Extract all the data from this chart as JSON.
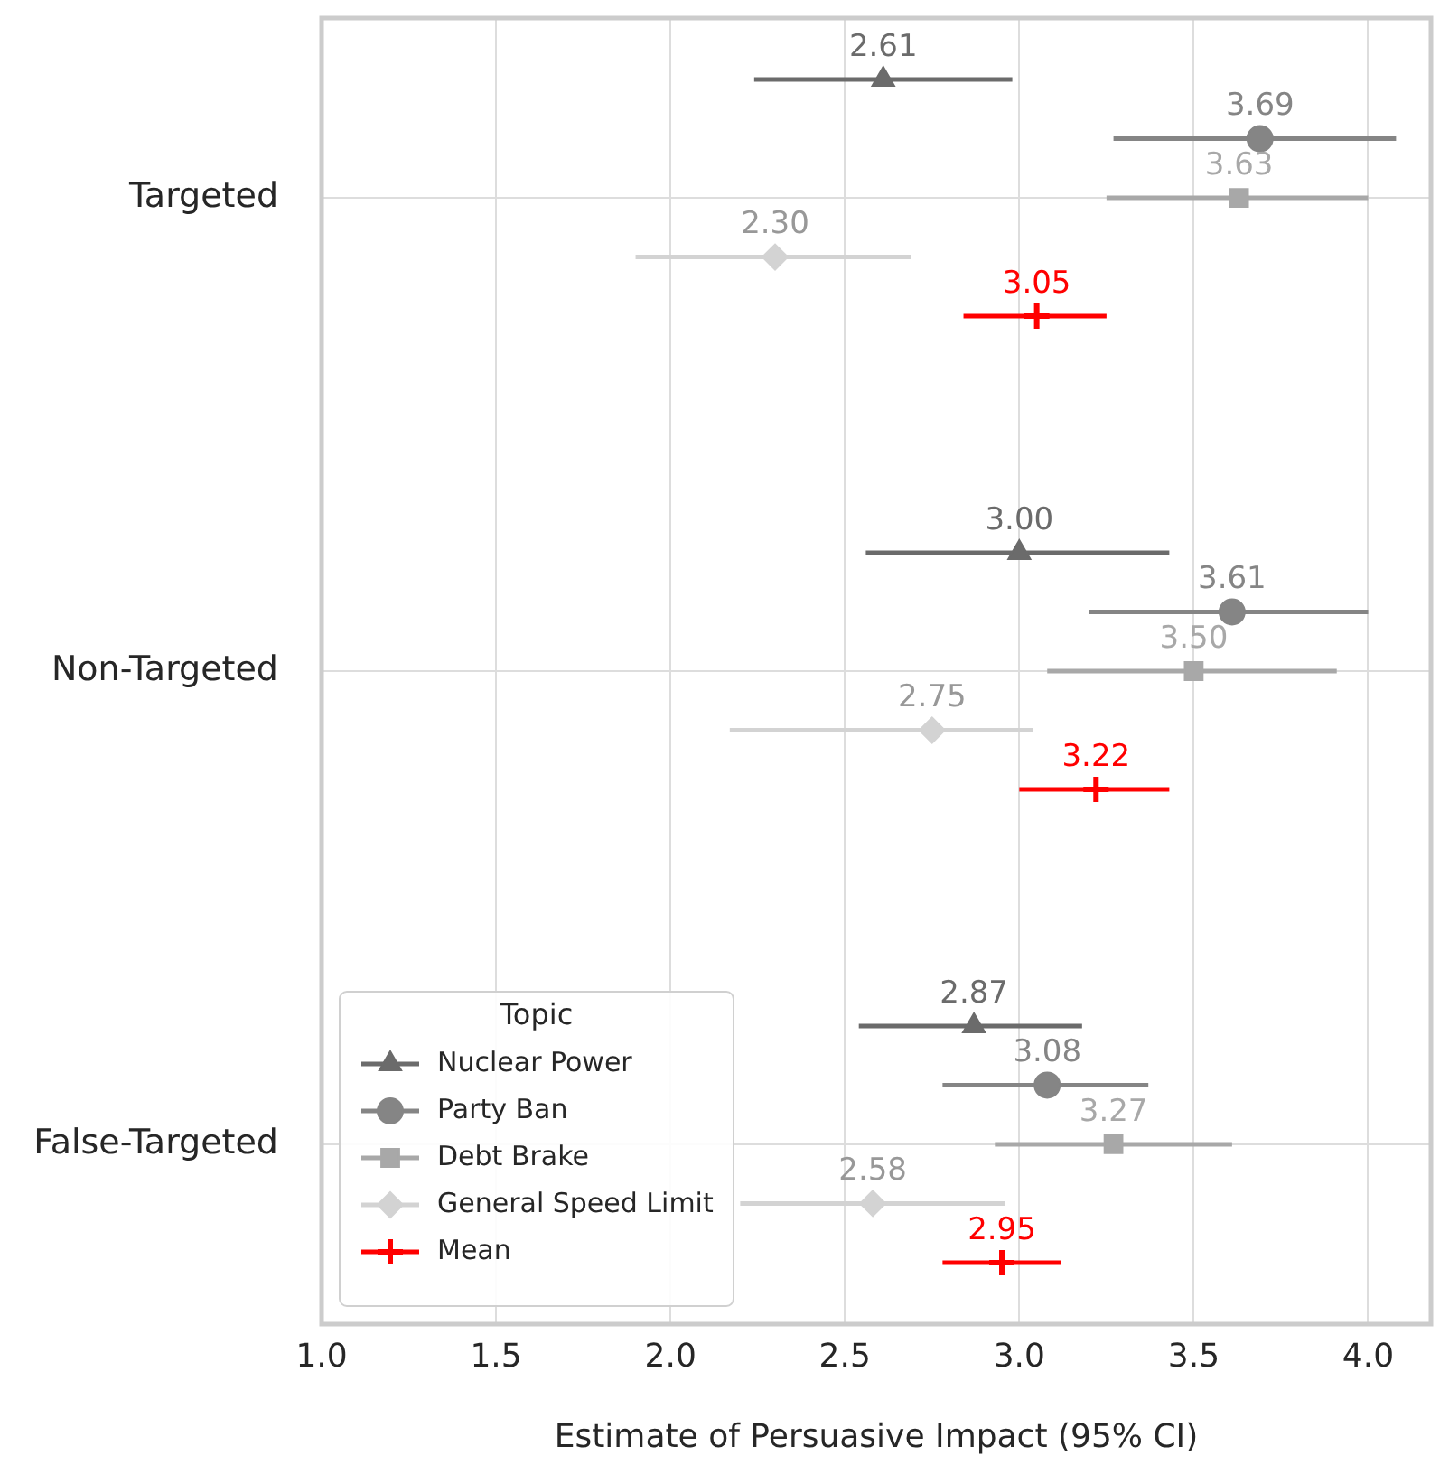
{
  "chart_data": {
    "type": "scatter",
    "orientation": "horizontal",
    "xlabel": "Estimate of Persuasive Impact (95% CI)",
    "legend_title": "Topic",
    "legend": "bottom left",
    "grid": true,
    "categories": [
      "Targeted",
      "Non-Targeted",
      "False-Targeted"
    ],
    "xlim": [
      1.0,
      4.18
    ],
    "xticks": [
      {
        "value": 1,
        "label": "1.0"
      },
      {
        "value": 1.5,
        "label": "1.5"
      },
      {
        "value": 2,
        "label": "2.0"
      },
      {
        "value": 2.5,
        "label": "2.5"
      },
      {
        "value": 3,
        "label": "3.0"
      },
      {
        "value": 3.5,
        "label": "3.5"
      },
      {
        "value": 4,
        "label": "4.0"
      }
    ],
    "series": [
      {
        "name": "Nuclear Power",
        "color": "#6b6b6b",
        "marker": "triangle",
        "values": [
          2.61,
          3.0,
          2.87
        ],
        "errors": [
          [
            2.24,
            2.98
          ],
          [
            2.56,
            3.43
          ],
          [
            2.54,
            3.18
          ]
        ],
        "value_labels": [
          "2.61",
          "3.00",
          "2.87"
        ]
      },
      {
        "name": "Party Ban",
        "color": "#858585",
        "marker": "circle",
        "values": [
          3.69,
          3.61,
          3.08
        ],
        "errors": [
          [
            3.27,
            4.08
          ],
          [
            3.2,
            4.0
          ],
          [
            2.78,
            3.37
          ]
        ],
        "value_labels": [
          "3.69",
          "3.61",
          "3.08"
        ]
      },
      {
        "name": "Debt Brake",
        "color": "#a8a8a8",
        "marker": "square",
        "values": [
          3.63,
          3.5,
          3.27
        ],
        "errors": [
          [
            3.25,
            4.0
          ],
          [
            3.08,
            3.91
          ],
          [
            2.93,
            3.61
          ]
        ],
        "value_labels": [
          "3.63",
          "3.50",
          "3.27"
        ]
      },
      {
        "name": "General Speed Limit",
        "color": "#d3d3d3",
        "marker": "diamond",
        "values": [
          2.3,
          2.75,
          2.58
        ],
        "errors": [
          [
            1.9,
            2.69
          ],
          [
            2.17,
            3.04
          ],
          [
            2.2,
            2.96
          ]
        ],
        "value_labels": [
          "2.30",
          "2.75",
          "2.58"
        ]
      },
      {
        "name": "Mean",
        "color": "#ff0000",
        "marker": "cross",
        "values": [
          3.05,
          3.22,
          2.95
        ],
        "errors": [
          [
            2.84,
            3.25
          ],
          [
            3.0,
            3.43
          ],
          [
            2.78,
            3.12
          ]
        ],
        "value_labels": [
          "3.05",
          "3.22",
          "2.95"
        ]
      }
    ]
  }
}
